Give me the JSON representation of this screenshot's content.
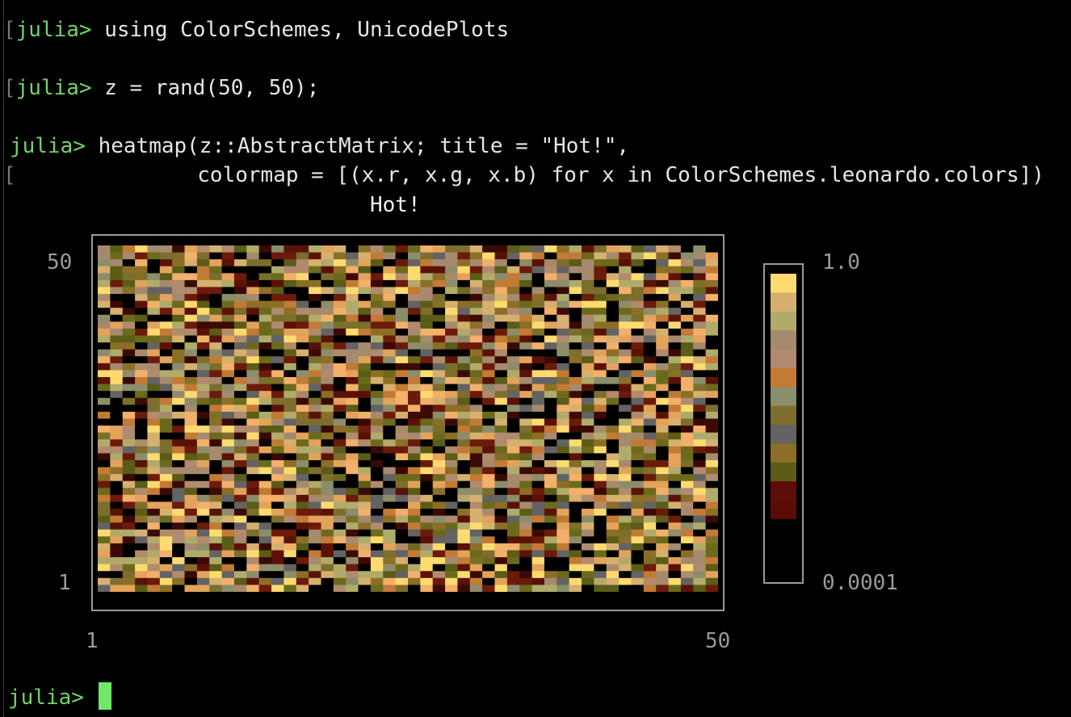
{
  "terminal": {
    "prompt": "julia> ",
    "lines": [
      {
        "code": "using ColorSchemes, UnicodePlots"
      },
      {
        "code": "z = rand(50, 50);"
      },
      {
        "code": "heatmap(z::AbstractMatrix; title = \"Hot!\","
      },
      {
        "continuation": "    colormap = [(x.r, x.g, x.b) for x in ColorSchemes.leonardo.colors])"
      }
    ]
  },
  "chart_data": {
    "type": "heatmap",
    "title": "Hot!",
    "rows": 50,
    "cols": 50,
    "x_ticks": [
      "1",
      "50"
    ],
    "y_ticks": [
      "1",
      "50"
    ],
    "xlim": [
      1,
      50
    ],
    "ylim": [
      1,
      50
    ],
    "colorbar": {
      "min_label": "0.0001",
      "max_label": "1.0",
      "colors_top_to_bottom": [
        "#ffdb6f",
        "#d6b06e",
        "#b1ab6b",
        "#a58a6d",
        "#b08b6d",
        "#c27a34",
        "#8c8d6b",
        "#7c6e2c",
        "#636363",
        "#8b6f26",
        "#5a5c17",
        "#5d0d06",
        "#5a0d05",
        "#000000",
        "#000000",
        "#000000"
      ]
    },
    "palette": [
      "#000000",
      "#000000",
      "#000000",
      "#3b0a05",
      "#5b1206",
      "#6c1a0a",
      "#5a5c17",
      "#6b6a1c",
      "#7c6e2c",
      "#8b6f26",
      "#636363",
      "#8c8d6b",
      "#c27a34",
      "#a58a6d",
      "#b08b6d",
      "#b1ab6b",
      "#d6b06e",
      "#e3a35b",
      "#f2b06a",
      "#ffdb6f"
    ]
  }
}
